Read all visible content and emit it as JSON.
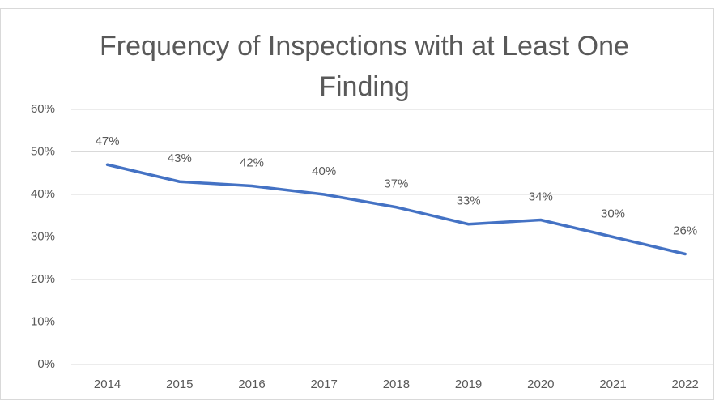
{
  "chart_data": {
    "type": "line",
    "title": "Frequency of Inspections with at Least One Finding",
    "categories": [
      "2014",
      "2015",
      "2016",
      "2017",
      "2018",
      "2019",
      "2020",
      "2021",
      "2022"
    ],
    "series": [
      {
        "name": "Frequency",
        "color": "#4472c4",
        "values": [
          47,
          43,
          42,
          40,
          37,
          33,
          34,
          30,
          26
        ],
        "value_labels": [
          "47%",
          "43%",
          "42%",
          "40%",
          "37%",
          "33%",
          "34%",
          "30%",
          "26%"
        ]
      }
    ],
    "ylim": [
      0,
      60
    ],
    "yticks": [
      {
        "value": 0,
        "label": "0%"
      },
      {
        "value": 10,
        "label": "10%"
      },
      {
        "value": 20,
        "label": "20%"
      },
      {
        "value": 30,
        "label": "30%"
      },
      {
        "value": 40,
        "label": "40%"
      },
      {
        "value": 50,
        "label": "50%"
      },
      {
        "value": 60,
        "label": "60%"
      }
    ],
    "grid": true
  }
}
